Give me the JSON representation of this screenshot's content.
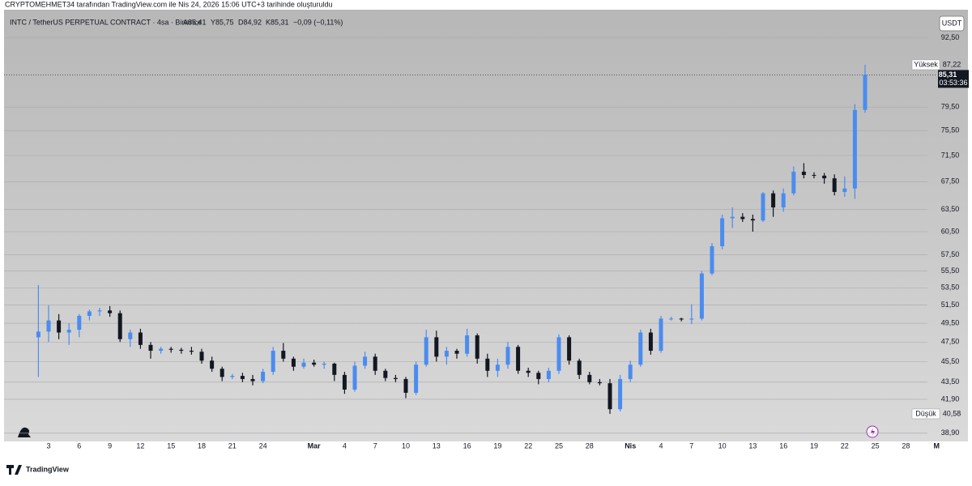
{
  "banner": "CRYPTOMEHMET34 tarafından TradingView.com ile Nis 24, 2026 15:06 UTC+3 tarihinde oluşturuldu",
  "brand": "TradingView",
  "chart_data": {
    "type": "candlestick",
    "header": {
      "symbol": "INTC / TetherUS PERPETUAL CONTRACT · 4sa · Binance",
      "ohlc": [
        "A85,41",
        "Y85,75",
        "D84,92",
        "K85,31"
      ],
      "change": "−0,09 (−0,11%)"
    },
    "currency": "USDT",
    "categories": [
      null,
      "3",
      null,
      null,
      "6",
      null,
      null,
      "9",
      null,
      null,
      "12",
      null,
      null,
      "15",
      null,
      null,
      "18",
      null,
      null,
      "21",
      null,
      null,
      "24",
      null,
      null,
      null,
      null,
      "Mar",
      null,
      null,
      "4",
      null,
      null,
      "7",
      null,
      null,
      "10",
      null,
      null,
      "13",
      null,
      null,
      "16",
      null,
      null,
      "19",
      null,
      null,
      "22",
      null,
      null,
      "25",
      null,
      null,
      "28",
      null,
      null,
      null,
      "Nis",
      null,
      null,
      "4",
      null,
      null,
      "7",
      null,
      null,
      "10",
      null,
      null,
      "13",
      null,
      null,
      "16",
      null,
      null,
      "19",
      null,
      null,
      "22",
      null,
      null,
      "25",
      null,
      null,
      "28",
      null,
      null,
      "M"
    ],
    "open": [
      48.0,
      48.6,
      49.8,
      48.5,
      48.8,
      50.3,
      50.8,
      50.9,
      50.6,
      47.8,
      48.5,
      47.2,
      46.6,
      46.8,
      46.7,
      46.6,
      46.5,
      45.6,
      44.8,
      44.0,
      44.1,
      43.8,
      43.6,
      44.5,
      46.6,
      45.8,
      45.0,
      45.4,
      45.2,
      45.3,
      44.2,
      42.8,
      45.1,
      46.0,
      44.6,
      43.9,
      43.8,
      42.5,
      45.2,
      48.0,
      46.0,
      46.6,
      46.3,
      48.2,
      45.8,
      44.6,
      45.2,
      47.0,
      44.6,
      44.4,
      43.8,
      44.6,
      48.0,
      45.6,
      44.2,
      43.5,
      43.4,
      41.0,
      43.8,
      45.2,
      48.5,
      46.6,
      50.0,
      50.0,
      49.9,
      50.0,
      55.2,
      58.6,
      62.3,
      62.5,
      62.2,
      62.0,
      65.8,
      63.8,
      65.8,
      69.0,
      68.5,
      68.4,
      68.0,
      66.0,
      66.5,
      79.0,
      null,
      null,
      null,
      null,
      null,
      null,
      null
    ],
    "high": [
      53.8,
      51.5,
      50.5,
      49.5,
      50.5,
      51.0,
      51.2,
      51.4,
      50.9,
      48.8,
      48.9,
      47.5,
      47.0,
      47.0,
      46.9,
      47.0,
      46.8,
      46.0,
      45.0,
      44.3,
      44.4,
      44.2,
      44.8,
      47.0,
      47.4,
      46.0,
      45.8,
      45.7,
      45.5,
      45.4,
      44.5,
      45.5,
      46.5,
      46.3,
      44.8,
      44.2,
      44.0,
      45.5,
      48.8,
      48.7,
      47.0,
      46.8,
      48.9,
      48.4,
      46.3,
      45.8,
      47.5,
      47.2,
      44.9,
      44.6,
      44.9,
      48.3,
      48.2,
      45.8,
      44.5,
      43.8,
      43.8,
      44.2,
      45.6,
      48.8,
      48.9,
      50.3,
      50.2,
      50.1,
      51.6,
      55.5,
      59.0,
      62.8,
      63.8,
      63.0,
      62.8,
      66.0,
      66.2,
      66.5,
      69.8,
      70.3,
      68.9,
      68.8,
      68.6,
      68.3,
      80.0,
      87.22,
      null,
      null,
      null,
      null,
      null,
      null,
      null
    ],
    "low": [
      44.0,
      47.5,
      47.8,
      47.2,
      48.0,
      49.8,
      50.3,
      50.2,
      47.5,
      47.0,
      46.8,
      45.8,
      46.3,
      46.4,
      46.3,
      46.2,
      45.3,
      44.5,
      43.6,
      43.8,
      43.5,
      43.2,
      43.4,
      44.2,
      45.5,
      44.6,
      44.8,
      45.0,
      44.8,
      43.6,
      42.4,
      42.6,
      44.8,
      44.2,
      43.6,
      43.5,
      42.0,
      42.3,
      45.0,
      45.5,
      45.2,
      45.8,
      46.0,
      45.3,
      44.0,
      44.0,
      44.8,
      44.3,
      44.0,
      43.3,
      43.5,
      44.3,
      45.2,
      43.8,
      43.3,
      43.2,
      40.58,
      40.8,
      43.5,
      45.0,
      46.2,
      46.4,
      49.8,
      49.7,
      49.4,
      49.8,
      55.0,
      58.2,
      61.0,
      61.8,
      60.5,
      61.8,
      62.5,
      63.2,
      65.5,
      68.0,
      68.0,
      67.2,
      65.5,
      65.3,
      65.0,
      78.5,
      null,
      null,
      null,
      null,
      null,
      null,
      null
    ],
    "close": [
      48.6,
      49.8,
      48.5,
      48.8,
      50.3,
      50.8,
      50.9,
      50.6,
      47.8,
      48.5,
      47.2,
      46.6,
      46.8,
      46.7,
      46.6,
      46.5,
      45.6,
      44.8,
      44.0,
      44.1,
      43.8,
      43.6,
      44.5,
      46.6,
      45.8,
      45.0,
      45.4,
      45.2,
      45.3,
      44.2,
      42.8,
      45.1,
      46.0,
      44.6,
      43.9,
      43.8,
      42.5,
      45.2,
      48.0,
      46.0,
      46.6,
      46.3,
      48.2,
      45.8,
      44.6,
      45.2,
      47.0,
      44.6,
      44.4,
      43.8,
      44.6,
      48.0,
      45.6,
      44.2,
      43.5,
      43.4,
      41.0,
      43.8,
      45.2,
      48.5,
      46.6,
      50.0,
      50.0,
      49.9,
      50.0,
      55.2,
      58.6,
      62.3,
      62.5,
      62.2,
      62.0,
      65.8,
      63.8,
      65.8,
      69.0,
      68.5,
      68.4,
      68.0,
      66.0,
      66.5,
      79.0,
      85.31,
      null,
      null,
      null,
      null,
      null,
      null,
      null
    ],
    "up_color": "#4a8cf0",
    "down_color": "#131722",
    "log_scale": true,
    "grid": true,
    "ylim": [
      38.2,
      98.4
    ],
    "yticks": [
      {
        "value": 38.9,
        "label": "38,90"
      },
      {
        "value": 41.9,
        "label": "41,90"
      },
      {
        "value": 43.5,
        "label": "43,50"
      },
      {
        "value": 45.5,
        "label": "45,50"
      },
      {
        "value": 47.5,
        "label": "47,50"
      },
      {
        "value": 49.5,
        "label": "49,50"
      },
      {
        "value": 51.5,
        "label": "51,50"
      },
      {
        "value": 53.5,
        "label": "53,50"
      },
      {
        "value": 55.5,
        "label": "55,50"
      },
      {
        "value": 57.5,
        "label": "57,50"
      },
      {
        "value": 60.5,
        "label": "60,50"
      },
      {
        "value": 63.5,
        "label": "63,50"
      },
      {
        "value": 67.5,
        "label": "67,50"
      },
      {
        "value": 71.5,
        "label": "71,50"
      },
      {
        "value": 75.5,
        "label": "75,50"
      },
      {
        "value": 79.5,
        "label": "79,50"
      },
      {
        "value": 92.5,
        "label": "92,50"
      }
    ],
    "price_labels": [
      {
        "name": "Yüksek",
        "value": 87.22,
        "label": "87,22"
      },
      {
        "name": "Düşük",
        "value": 40.58,
        "label": "40,58"
      }
    ],
    "last_price": {
      "value": 85.31,
      "label": "85,31",
      "countdown": "03:53:36"
    }
  }
}
